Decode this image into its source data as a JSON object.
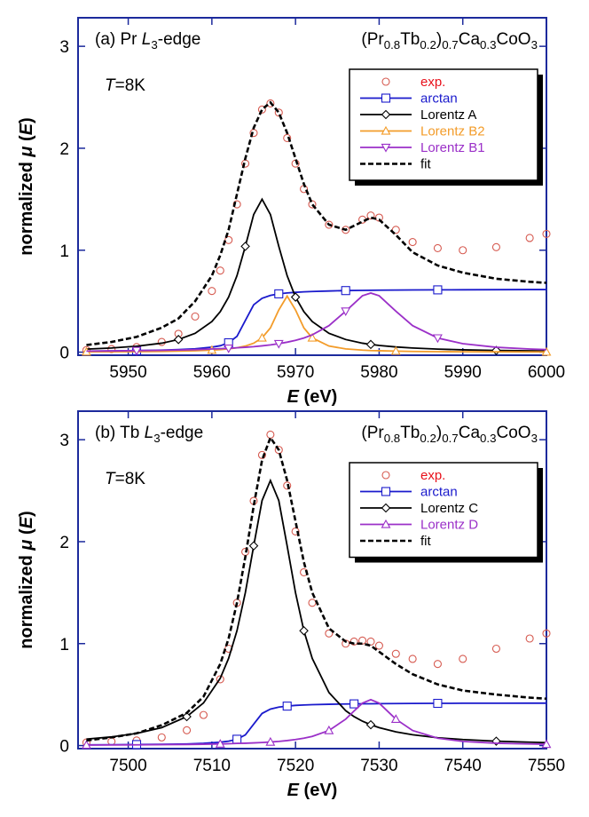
{
  "chart_data": [
    {
      "type": "line",
      "panel_label": [
        {
          "text": "(a) Pr "
        },
        {
          "text": "L",
          "style": "italic"
        },
        {
          "text": "3",
          "style": "sub"
        },
        {
          "text": "-edge"
        }
      ],
      "formula": [
        {
          "text": "(Pr"
        },
        {
          "text": "0.8",
          "style": "sub"
        },
        {
          "text": "Tb"
        },
        {
          "text": "0.2",
          "style": "sub"
        },
        {
          "text": ")"
        },
        {
          "text": "0.7",
          "style": "sub"
        },
        {
          "text": "Ca"
        },
        {
          "text": "0.3",
          "style": "sub"
        },
        {
          "text": "CoO"
        },
        {
          "text": "3",
          "style": "sub"
        }
      ],
      "annotation": [
        {
          "text": "T",
          "style": "italic"
        },
        {
          "text": "=8K"
        }
      ],
      "x_label": [
        {
          "text": "E",
          "style": "italic"
        },
        {
          "text": " (eV)"
        }
      ],
      "y_label": [
        {
          "text": "normalized "
        },
        {
          "text": "μ",
          "style": "italic"
        },
        {
          "text": " ("
        },
        {
          "text": "E",
          "style": "italic"
        },
        {
          "text": ")"
        }
      ],
      "xlim": [
        5944,
        6000
      ],
      "xticks": [
        5950,
        5960,
        5970,
        5980,
        5990,
        6000
      ],
      "ylim": [
        -0.03,
        3.28
      ],
      "yticks": [
        0,
        1,
        2,
        3
      ],
      "legend": "upper right",
      "x": [
        5945,
        5948,
        5951,
        5954,
        5956,
        5958,
        5960,
        5961,
        5962,
        5963,
        5964,
        5965,
        5966,
        5967,
        5968,
        5969,
        5970,
        5971,
        5972,
        5974,
        5976,
        5978,
        5979,
        5980,
        5982,
        5984,
        5987,
        5990,
        5994,
        5998,
        6000
      ],
      "series": [
        {
          "name": "exp.",
          "color": "#e0302a",
          "marker": "circle",
          "line": false,
          "values": [
            0.02,
            0.03,
            0.05,
            0.1,
            0.18,
            0.35,
            0.6,
            0.8,
            1.1,
            1.45,
            1.85,
            2.15,
            2.38,
            2.44,
            2.35,
            2.1,
            1.85,
            1.6,
            1.45,
            1.25,
            1.2,
            1.3,
            1.34,
            1.32,
            1.2,
            1.08,
            1.02,
            1.0,
            1.03,
            1.12,
            1.16
          ]
        },
        {
          "name": "arctan",
          "color": "#1a1acc",
          "marker": "square",
          "line": true,
          "values": [
            0.01,
            0.012,
            0.015,
            0.02,
            0.025,
            0.033,
            0.049,
            0.063,
            0.092,
            0.155,
            0.31,
            0.465,
            0.528,
            0.557,
            0.572,
            0.581,
            0.587,
            0.592,
            0.595,
            0.6,
            0.604,
            0.606,
            0.607,
            0.608,
            0.609,
            0.61,
            0.611,
            0.612,
            0.613,
            0.614,
            0.614
          ]
        },
        {
          "name": "Lorentz A",
          "color": "#000000",
          "marker": "diamond",
          "line": true,
          "values": [
            0.03,
            0.041,
            0.058,
            0.088,
            0.124,
            0.185,
            0.3,
            0.397,
            0.54,
            0.75,
            1.038,
            1.35,
            1.5,
            1.35,
            1.038,
            0.75,
            0.54,
            0.397,
            0.3,
            0.185,
            0.124,
            0.088,
            0.076,
            0.066,
            0.051,
            0.041,
            0.03,
            0.023,
            0.017,
            0.013,
            0.012
          ]
        },
        {
          "name": "Lorentz B2",
          "color": "#f39c2a",
          "marker": "triangle-up",
          "line": true,
          "values": [
            0.003,
            0.004,
            0.005,
            0.007,
            0.01,
            0.014,
            0.02,
            0.025,
            0.032,
            0.043,
            0.06,
            0.088,
            0.14,
            0.238,
            0.414,
            0.55,
            0.414,
            0.238,
            0.14,
            0.06,
            0.032,
            0.02,
            0.016,
            0.014,
            0.01,
            0.007,
            0.005,
            0.004,
            0.003,
            0.002,
            0.002
          ]
        },
        {
          "name": "Lorentz B1",
          "color": "#9b30c8",
          "marker": "triangle-down",
          "line": true,
          "values": [
            0.01,
            0.012,
            0.015,
            0.018,
            0.021,
            0.025,
            0.031,
            0.034,
            0.038,
            0.043,
            0.048,
            0.054,
            0.062,
            0.071,
            0.083,
            0.098,
            0.116,
            0.139,
            0.17,
            0.26,
            0.402,
            0.553,
            0.58,
            0.553,
            0.402,
            0.26,
            0.139,
            0.083,
            0.048,
            0.031,
            0.025
          ]
        },
        {
          "name": "fit",
          "color": "#000000",
          "marker": "none",
          "line": true,
          "dash": true,
          "values": [
            0.07,
            0.1,
            0.15,
            0.24,
            0.33,
            0.5,
            0.75,
            0.95,
            1.2,
            1.55,
            1.9,
            2.2,
            2.38,
            2.45,
            2.35,
            2.15,
            1.9,
            1.65,
            1.45,
            1.25,
            1.2,
            1.28,
            1.32,
            1.3,
            1.15,
            0.98,
            0.85,
            0.78,
            0.72,
            0.69,
            0.68
          ]
        }
      ]
    },
    {
      "type": "line",
      "panel_label": [
        {
          "text": "(b) Tb "
        },
        {
          "text": "L",
          "style": "italic"
        },
        {
          "text": "3",
          "style": "sub"
        },
        {
          "text": "-edge"
        }
      ],
      "formula": [
        {
          "text": "(Pr"
        },
        {
          "text": "0.8",
          "style": "sub"
        },
        {
          "text": "Tb"
        },
        {
          "text": "0.2",
          "style": "sub"
        },
        {
          "text": ")"
        },
        {
          "text": "0.7",
          "style": "sub"
        },
        {
          "text": "Ca"
        },
        {
          "text": "0.3",
          "style": "sub"
        },
        {
          "text": "CoO"
        },
        {
          "text": "3",
          "style": "sub"
        }
      ],
      "annotation": [
        {
          "text": "T",
          "style": "italic"
        },
        {
          "text": "=8K"
        }
      ],
      "x_label": [
        {
          "text": "E",
          "style": "italic"
        },
        {
          "text": " (eV)"
        }
      ],
      "y_label": [
        {
          "text": "normalized "
        },
        {
          "text": "μ",
          "style": "italic"
        },
        {
          "text": " ("
        },
        {
          "text": "E",
          "style": "italic"
        },
        {
          "text": ")"
        }
      ],
      "xlim": [
        7494,
        7550
      ],
      "xticks": [
        7500,
        7510,
        7520,
        7530,
        7540,
        7550
      ],
      "ylim": [
        -0.03,
        3.28
      ],
      "yticks": [
        0,
        1,
        2,
        3
      ],
      "legend": "upper right",
      "x": [
        7495,
        7498,
        7501,
        7504,
        7507,
        7509,
        7511,
        7512,
        7513,
        7514,
        7515,
        7516,
        7517,
        7518,
        7519,
        7520,
        7521,
        7522,
        7524,
        7526,
        7527,
        7528,
        7529,
        7530,
        7532,
        7534,
        7537,
        7540,
        7544,
        7548,
        7550
      ],
      "series": [
        {
          "name": "exp.",
          "color": "#e0302a",
          "marker": "circle",
          "line": false,
          "values": [
            0.03,
            0.04,
            0.05,
            0.08,
            0.15,
            0.3,
            0.65,
            0.95,
            1.4,
            1.9,
            2.4,
            2.85,
            3.05,
            2.9,
            2.55,
            2.1,
            1.7,
            1.4,
            1.1,
            1.0,
            1.02,
            1.03,
            1.02,
            0.98,
            0.9,
            0.85,
            0.8,
            0.85,
            0.95,
            1.05,
            1.1
          ]
        },
        {
          "name": "arctan",
          "color": "#1a1acc",
          "marker": "square",
          "line": true,
          "values": [
            0.007,
            0.008,
            0.01,
            0.012,
            0.016,
            0.022,
            0.033,
            0.043,
            0.062,
            0.105,
            0.21,
            0.315,
            0.358,
            0.377,
            0.387,
            0.394,
            0.398,
            0.401,
            0.405,
            0.408,
            0.409,
            0.41,
            0.41,
            0.411,
            0.412,
            0.413,
            0.414,
            0.415,
            0.415,
            0.416,
            0.416
          ]
        },
        {
          "name": "Lorentz C",
          "color": "#000000",
          "marker": "diamond",
          "line": true,
          "values": [
            0.064,
            0.085,
            0.119,
            0.176,
            0.284,
            0.418,
            0.66,
            0.855,
            1.126,
            1.499,
            1.959,
            2.403,
            2.6,
            2.403,
            1.959,
            1.499,
            1.126,
            0.855,
            0.52,
            0.342,
            0.284,
            0.239,
            0.204,
            0.176,
            0.134,
            0.106,
            0.077,
            0.059,
            0.043,
            0.033,
            0.029
          ]
        },
        {
          "name": "Lorentz D",
          "color": "#9b30c8",
          "marker": "triangle-up",
          "line": true,
          "values": [
            0.005,
            0.006,
            0.007,
            0.009,
            0.011,
            0.013,
            0.016,
            0.018,
            0.021,
            0.023,
            0.026,
            0.03,
            0.035,
            0.041,
            0.049,
            0.059,
            0.072,
            0.09,
            0.148,
            0.259,
            0.339,
            0.416,
            0.45,
            0.416,
            0.259,
            0.148,
            0.072,
            0.041,
            0.023,
            0.016,
            0.013
          ]
        },
        {
          "name": "fit",
          "color": "#000000",
          "marker": "none",
          "line": true,
          "dash": true,
          "values": [
            0.05,
            0.08,
            0.12,
            0.2,
            0.32,
            0.48,
            0.8,
            1.05,
            1.4,
            1.85,
            2.35,
            2.8,
            3.02,
            2.9,
            2.6,
            2.2,
            1.8,
            1.5,
            1.15,
            1.02,
            1.0,
            1.0,
            0.98,
            0.92,
            0.8,
            0.7,
            0.6,
            0.54,
            0.5,
            0.47,
            0.46
          ]
        }
      ]
    }
  ]
}
